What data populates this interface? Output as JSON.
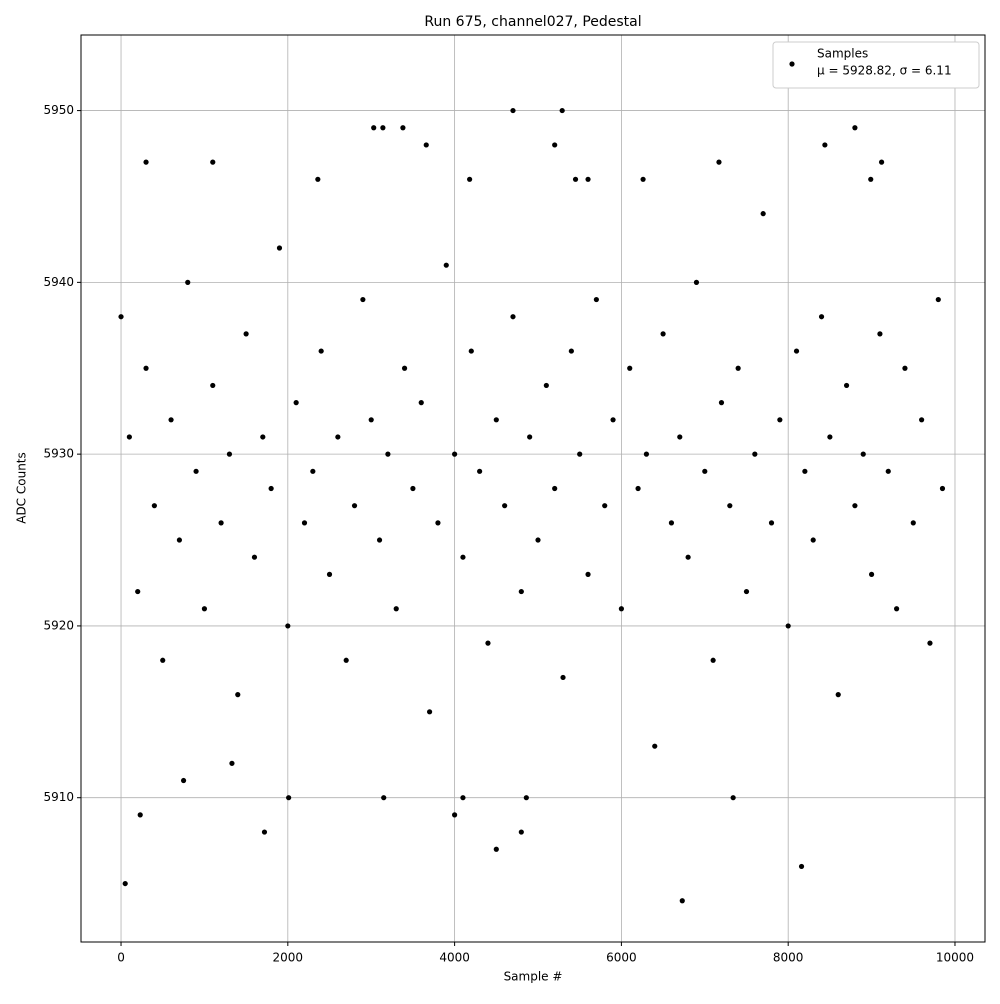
{
  "chart_data": {
    "type": "scatter",
    "title": "Run 675, channel027, Pedestal",
    "xlabel": "Sample #",
    "ylabel": "ADC Counts",
    "x": [
      0,
      100,
      200,
      300,
      400,
      500,
      600,
      700,
      800,
      900,
      1000,
      1100,
      1200,
      1300,
      1400,
      1500,
      1600,
      1700,
      1800,
      1900,
      2000,
      2100,
      2200,
      2300,
      2400,
      2500,
      2600,
      2700,
      2800,
      2900,
      3000,
      3100,
      3200,
      3300,
      3400,
      3500,
      3600,
      3700,
      3800,
      3900,
      4000,
      4100,
      4200,
      4300,
      4400,
      4500,
      4600,
      4700,
      4800,
      4900,
      5000,
      5100,
      5200,
      5300,
      5400,
      5500,
      5600,
      5700,
      5800,
      5900,
      6000,
      6100,
      6200,
      6300,
      6400,
      6500,
      6600,
      6700,
      6800,
      6900,
      7000,
      7100,
      7200,
      7300,
      7400,
      7500,
      7600,
      7700,
      7800,
      7900,
      8000,
      8100,
      8200,
      8300,
      8400,
      8500,
      8600,
      8700,
      8800,
      8900,
      9000,
      9100,
      9200,
      9300,
      9400,
      9500,
      9600,
      9700,
      9800,
      9850,
      50,
      230,
      300,
      1100,
      1720,
      2010,
      3030,
      3140,
      3150,
      3380,
      3660,
      4000,
      4100,
      4500,
      4700,
      4800,
      4860,
      5290,
      5200,
      6730,
      7170,
      7340,
      8160,
      8440,
      8800,
      9120,
      8990,
      4180,
      6260,
      2360,
      5450,
      5600,
      1330,
      750
    ],
    "series": [
      {
        "name": "Samples",
        "color": "#000000",
        "values": [
          5938,
          5931,
          5922,
          5935,
          5927,
          5918,
          5932,
          5925,
          5940,
          5929,
          5921,
          5934,
          5926,
          5930,
          5916,
          5937,
          5924,
          5931,
          5928,
          5942,
          5920,
          5933,
          5926,
          5929,
          5936,
          5923,
          5931,
          5918,
          5927,
          5939,
          5932,
          5925,
          5930,
          5921,
          5935,
          5928,
          5933,
          5915,
          5926,
          5941,
          5930,
          5924,
          5936,
          5929,
          5919,
          5932,
          5927,
          5938,
          5922,
          5931,
          5925,
          5934,
          5928,
          5917,
          5936,
          5930,
          5923,
          5939,
          5927,
          5932,
          5921,
          5935,
          5928,
          5930,
          5913,
          5937,
          5926,
          5931,
          5924,
          5940,
          5929,
          5918,
          5933,
          5927,
          5935,
          5922,
          5930,
          5944,
          5926,
          5932,
          5920,
          5936,
          5929,
          5925,
          5938,
          5931,
          5916,
          5934,
          5927,
          5930,
          5923,
          5937,
          5929,
          5921,
          5935,
          5926,
          5932,
          5919,
          5939,
          5928,
          5905,
          5909,
          5947,
          5947,
          5908,
          5910,
          5949,
          5949,
          5910,
          5949,
          5948,
          5909,
          5910,
          5907,
          5950,
          5908,
          5910,
          5950,
          5948,
          5904,
          5947,
          5910,
          5906,
          5948,
          5949,
          5947,
          5946,
          5946,
          5946,
          5946,
          5946,
          5946,
          5912,
          5911
        ]
      }
    ],
    "legend_stats": "μ = 5928.82, σ = 6.11",
    "xlim": [
      -480,
      10360
    ],
    "ylim": [
      5901.6,
      5954.4
    ],
    "xticks": [
      0,
      2000,
      4000,
      6000,
      8000,
      10000
    ],
    "yticks": [
      5910,
      5920,
      5930,
      5940,
      5950
    ],
    "grid": true,
    "legend": "upper right"
  }
}
